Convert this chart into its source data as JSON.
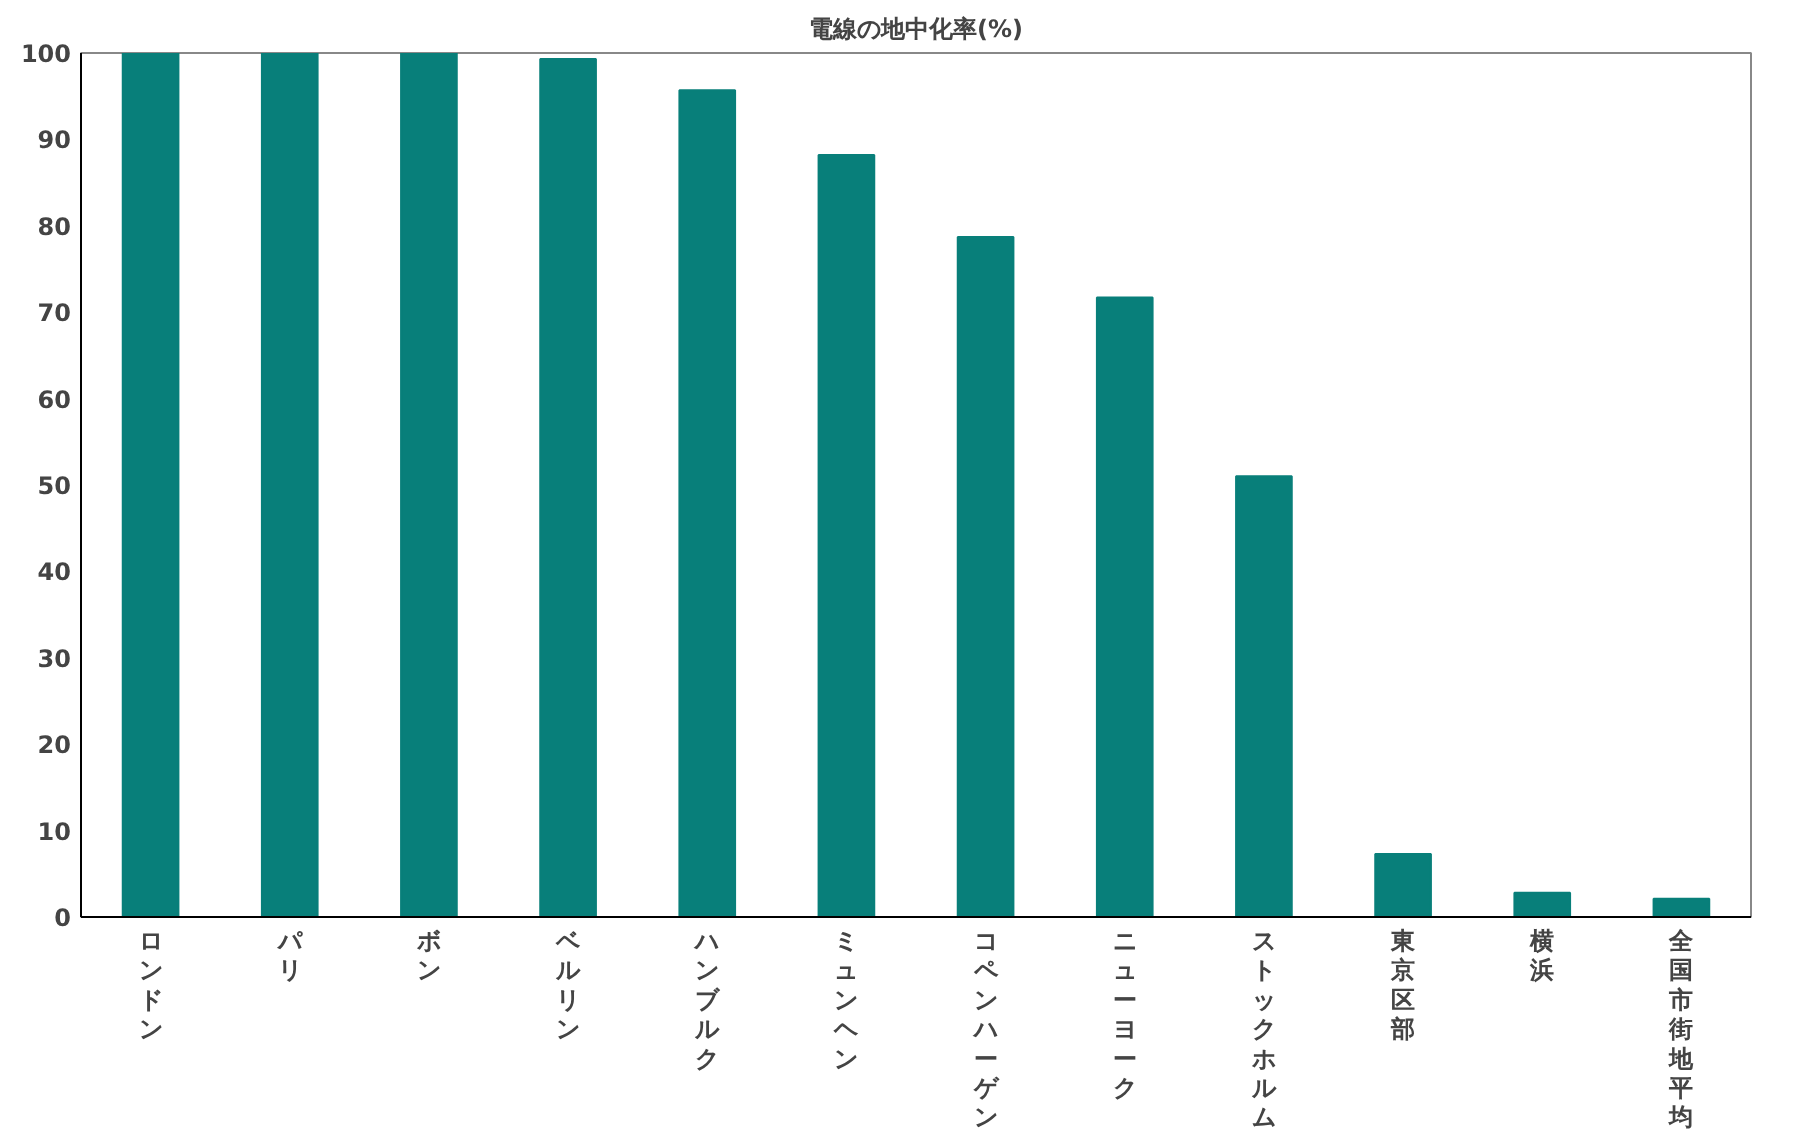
{
  "chart_data": {
    "type": "bar",
    "title": "電線の地中化率(%)",
    "categories": [
      "ロンドン",
      "パリ",
      "ボン",
      "ベルリン",
      "ハンブルク",
      "ミュンヘン",
      "コペンハーゲン",
      "ニューヨーク",
      "ストックホルム",
      "東京区部",
      "横浜",
      "全国市街地平均"
    ],
    "values": [
      100,
      100,
      100,
      99.3,
      95.7,
      88.2,
      78.7,
      71.7,
      51,
      7.3,
      2.8,
      2.1
    ],
    "color": "#087f7a",
    "ylim": [
      0,
      100
    ],
    "yticks": [
      0,
      10,
      20,
      30,
      40,
      50,
      60,
      70,
      80,
      90,
      100
    ],
    "grid": false
  }
}
